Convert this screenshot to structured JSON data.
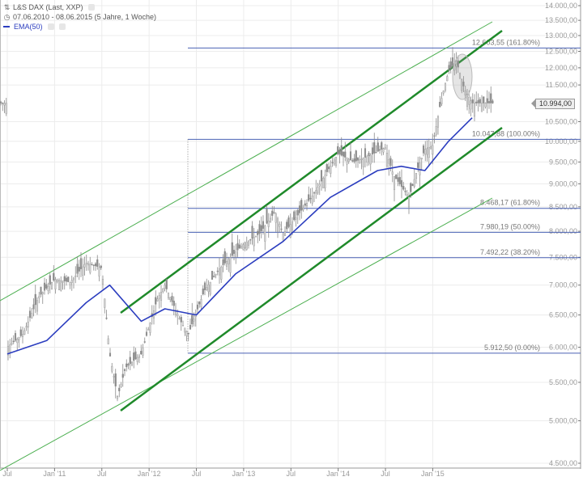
{
  "header": {
    "title": "L&S DAX (Last, XXP)",
    "range": "07.06.2010 - 08.06.2015 (5 Jahre, 1 Woche)",
    "indicator": "EMA(50)",
    "title_icon": "chart-type-icon",
    "range_icon": "clock-icon"
  },
  "colors": {
    "candle": "#8a8a8a",
    "candle_light": "#d0d0d0",
    "ema": "#2b3dbf",
    "channel_bold": "#1f8a2a",
    "channel_thin": "#4caf50",
    "fib_line": "#4a62b5",
    "grid": "#ececec",
    "axis_text": "#999999"
  },
  "last_price": "10.994,00",
  "chart_data": {
    "type": "line",
    "title": "L&S DAX (Last, XXP)",
    "subtitle": "07.06.2010 - 08.06.2015 (5 Jahre, 1 Woche)",
    "xlabel": "",
    "ylabel": "",
    "y_scale": "log",
    "ylim": [
      4400,
      14100
    ],
    "grid": true,
    "legend_position": "top-left",
    "x_ticks": [
      "Jul",
      "Jan '11",
      "Jul",
      "Jan '12",
      "Jul",
      "Jan '13",
      "Jul",
      "Jan '14",
      "Jul",
      "Jan '15"
    ],
    "y_ticks": [
      "14.000,00",
      "13.500,00",
      "13.000,00",
      "12.500,00",
      "12.000,00",
      "11.500,00",
      "10.500,00",
      "10.000,00",
      "9.500,00",
      "9.000,00",
      "8.500,00",
      "8.000,00",
      "7.500,00",
      "7.000,00",
      "6.500,00",
      "6.000,00",
      "5.500,00",
      "5.000,00",
      "4.500,00"
    ],
    "y_tick_values": [
      14000,
      13500,
      13000,
      12500,
      12000,
      11500,
      10500,
      10000,
      9500,
      9000,
      8500,
      8000,
      7500,
      7000,
      6500,
      6000,
      5500,
      5000,
      4500
    ],
    "series": [
      {
        "name": "L&S DAX (weekly close, approx.)",
        "x": [
          "2010-07",
          "2010-09",
          "2010-11",
          "2011-01",
          "2011-03",
          "2011-05",
          "2011-07",
          "2011-08",
          "2011-09",
          "2011-10",
          "2011-12",
          "2012-02",
          "2012-03",
          "2012-05",
          "2012-06",
          "2012-08",
          "2012-10",
          "2012-12",
          "2013-01",
          "2013-03",
          "2013-05",
          "2013-06",
          "2013-08",
          "2013-10",
          "2013-12",
          "2014-01",
          "2014-03",
          "2014-05",
          "2014-07",
          "2014-08",
          "2014-10",
          "2014-11",
          "2014-12",
          "2015-01",
          "2015-02",
          "2015-03",
          "2015-04",
          "2015-05",
          "2015-06"
        ],
        "values": [
          6000,
          6200,
          6800,
          7100,
          7050,
          7400,
          7300,
          5900,
          5300,
          5700,
          5900,
          6750,
          7000,
          6400,
          6200,
          6900,
          7300,
          7600,
          7750,
          7950,
          8400,
          7950,
          8350,
          8800,
          9400,
          9700,
          9500,
          9650,
          9850,
          9200,
          8700,
          9300,
          9800,
          9900,
          11000,
          11900,
          12200,
          11400,
          10994
        ]
      },
      {
        "name": "EMA(50)",
        "x": [
          "2010-07",
          "2010-12",
          "2011-05",
          "2011-08",
          "2011-12",
          "2012-03",
          "2012-07",
          "2012-12",
          "2013-06",
          "2013-12",
          "2014-06",
          "2014-09",
          "2014-12",
          "2015-03",
          "2015-06"
        ],
        "values": [
          5900,
          6100,
          6700,
          7000,
          6400,
          6600,
          6500,
          7200,
          7800,
          8700,
          9300,
          9400,
          9300,
          10000,
          10600
        ]
      }
    ],
    "annotations": [
      {
        "type": "fibonacci",
        "level": "161.80%",
        "value": "12.603,55"
      },
      {
        "type": "fibonacci",
        "level": "100.00%",
        "value": "10.047,88"
      },
      {
        "type": "fibonacci",
        "level": "61.80%",
        "value": "8.468,17"
      },
      {
        "type": "fibonacci",
        "level": "50.00%",
        "value": "7.980,19"
      },
      {
        "type": "fibonacci",
        "level": "38.20%",
        "value": "7.492,22"
      },
      {
        "type": "fibonacci",
        "level": "0.00%",
        "value": "5.912,50"
      },
      {
        "type": "trend_channel",
        "style": "bold",
        "description": "Upper channel line from Aug 2011 to 2015"
      },
      {
        "type": "trend_channel",
        "style": "bold",
        "description": "Lower channel line from Aug 2011 low to 2015"
      },
      {
        "type": "trend_channel",
        "style": "thin",
        "description": "Outer upper channel line"
      },
      {
        "type": "trend_channel",
        "style": "thin",
        "description": "Outer lower channel line"
      },
      {
        "type": "ellipse",
        "description": "Highlight of top in spring 2015"
      },
      {
        "type": "price_marker",
        "value": "10.994,00"
      }
    ]
  },
  "fib_levels": [
    {
      "label": "12.603,55 (161.80%)",
      "value": 12603.55
    },
    {
      "label": "10.047,88 (100.00%)",
      "value": 10047.88
    },
    {
      "label": "8.468,17 (61.80%)",
      "value": 8468.17
    },
    {
      "label": "7.980,19 (50.00%)",
      "value": 7980.19
    },
    {
      "label": "7.492,22 (38.20%)",
      "value": 7492.22
    },
    {
      "label": "5.912,50 (0.00%)",
      "value": 5912.5
    }
  ]
}
